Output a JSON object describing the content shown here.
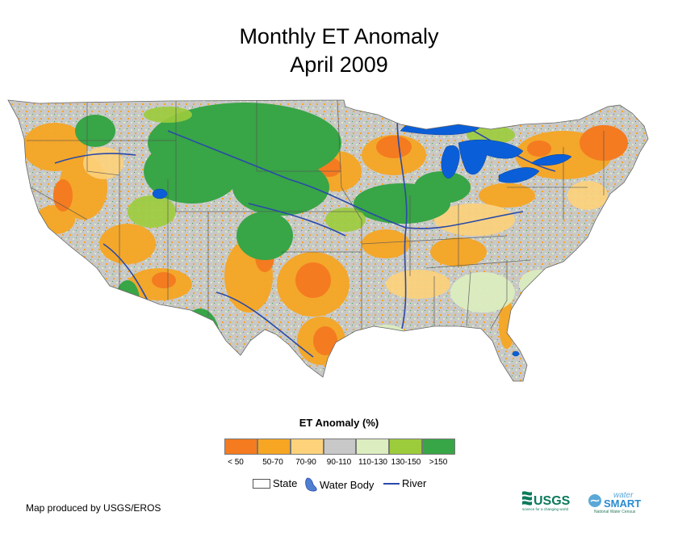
{
  "title_line1": "Monthly ET Anomaly",
  "title_line2": "April 2009",
  "legend": {
    "title": "ET Anomaly (%)",
    "classes": [
      {
        "label": "< 50",
        "color": "#f47b20"
      },
      {
        "label": "50-70",
        "color": "#f6a623"
      },
      {
        "label": "70-90",
        "color": "#fdd27a"
      },
      {
        "label": "90-110",
        "color": "#c8c8c8"
      },
      {
        "label": "110-130",
        "color": "#dcedc0"
      },
      {
        "label": "130-150",
        "color": "#9ccc3c"
      },
      {
        "label": ">150",
        "color": "#38a547"
      }
    ],
    "symbols": {
      "state": "State",
      "water_body": "Water Body",
      "river": "River"
    }
  },
  "credit": "Map produced by USGS/EROS",
  "logos": {
    "usgs": "USGS",
    "usgs_tagline": "science for a changing world",
    "watersmart_top": "water",
    "watersmart_main": "SMART",
    "watersmart_tagline": "National Water Census"
  },
  "colors": {
    "water": "#0a5fd8",
    "river": "#2a4aa8",
    "state_line": "#555555"
  }
}
